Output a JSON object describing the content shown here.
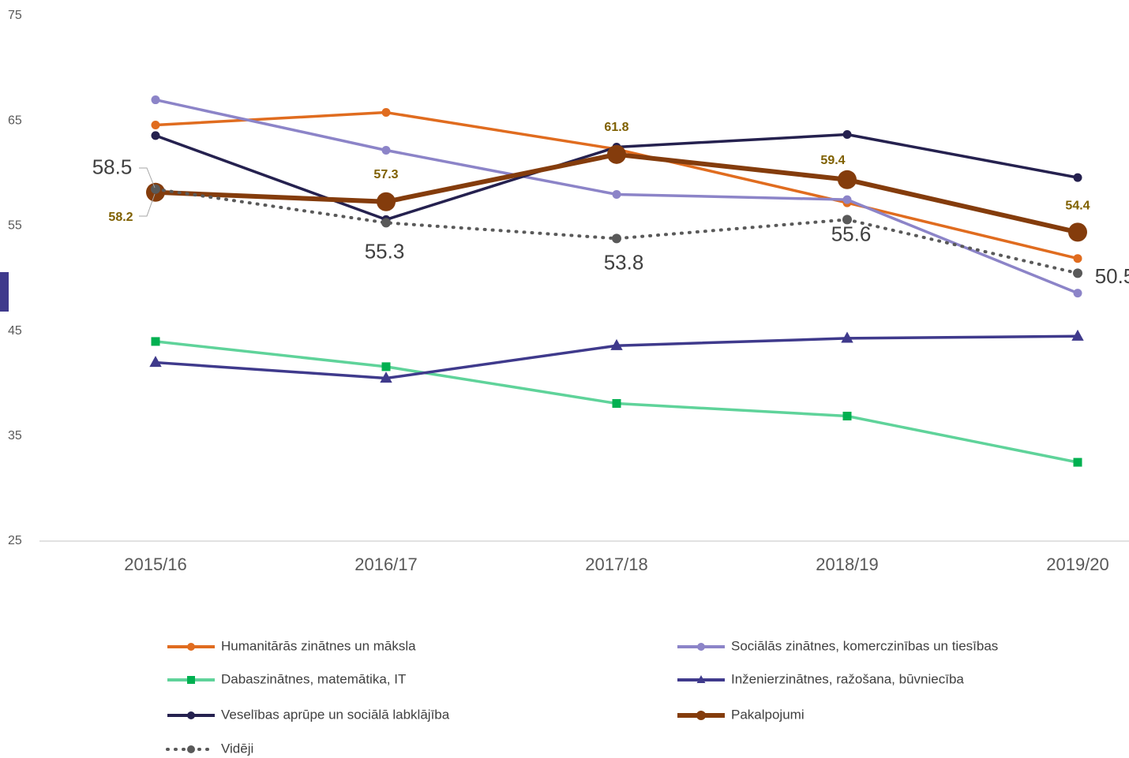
{
  "chart_data": {
    "type": "line",
    "categories": [
      "2015/16",
      "2016/17",
      "2017/18",
      "2018/19",
      "2019/20"
    ],
    "ylim": [
      25,
      75
    ],
    "yticks": [
      25,
      35,
      45,
      55,
      65,
      75
    ],
    "grid": false,
    "legend": "bottom",
    "series": [
      {
        "name": "Humanitārās zinātnes un māksla",
        "color": "#e06c1f",
        "marker": "circle",
        "values": [
          64.6,
          65.8,
          62.3,
          57.2,
          51.9
        ]
      },
      {
        "name": "Sociālās zinātnes, komerczinības un tiesības",
        "color": "#8c84c8",
        "marker": "circle",
        "values": [
          67.0,
          62.2,
          58.0,
          57.5,
          48.6
        ]
      },
      {
        "name": "Dabaszinātnes, matemātika, IT",
        "color": "#5fd39a",
        "marker": "square",
        "values": [
          44.0,
          41.6,
          38.1,
          36.9,
          32.5
        ]
      },
      {
        "name": "Inženierzinātnes, ražošana, būvniecība",
        "color": "#3f3a8c",
        "marker": "triangle",
        "values": [
          42.0,
          40.5,
          43.6,
          44.3,
          44.5
        ]
      },
      {
        "name": "Veselības aprūpe un sociālā labklājība",
        "color": "#25214f",
        "marker": "circle",
        "values": [
          63.6,
          55.6,
          62.5,
          63.7,
          59.6
        ]
      },
      {
        "name": "Pakalpojumi",
        "color": "#843c0c",
        "marker": "circle",
        "values": [
          58.2,
          57.3,
          61.8,
          59.4,
          54.4
        ]
      },
      {
        "name": "Vidēji",
        "color": "#595959",
        "marker": "circle",
        "dashed": true,
        "values": [
          58.5,
          55.3,
          53.8,
          55.6,
          50.5
        ]
      }
    ]
  }
}
